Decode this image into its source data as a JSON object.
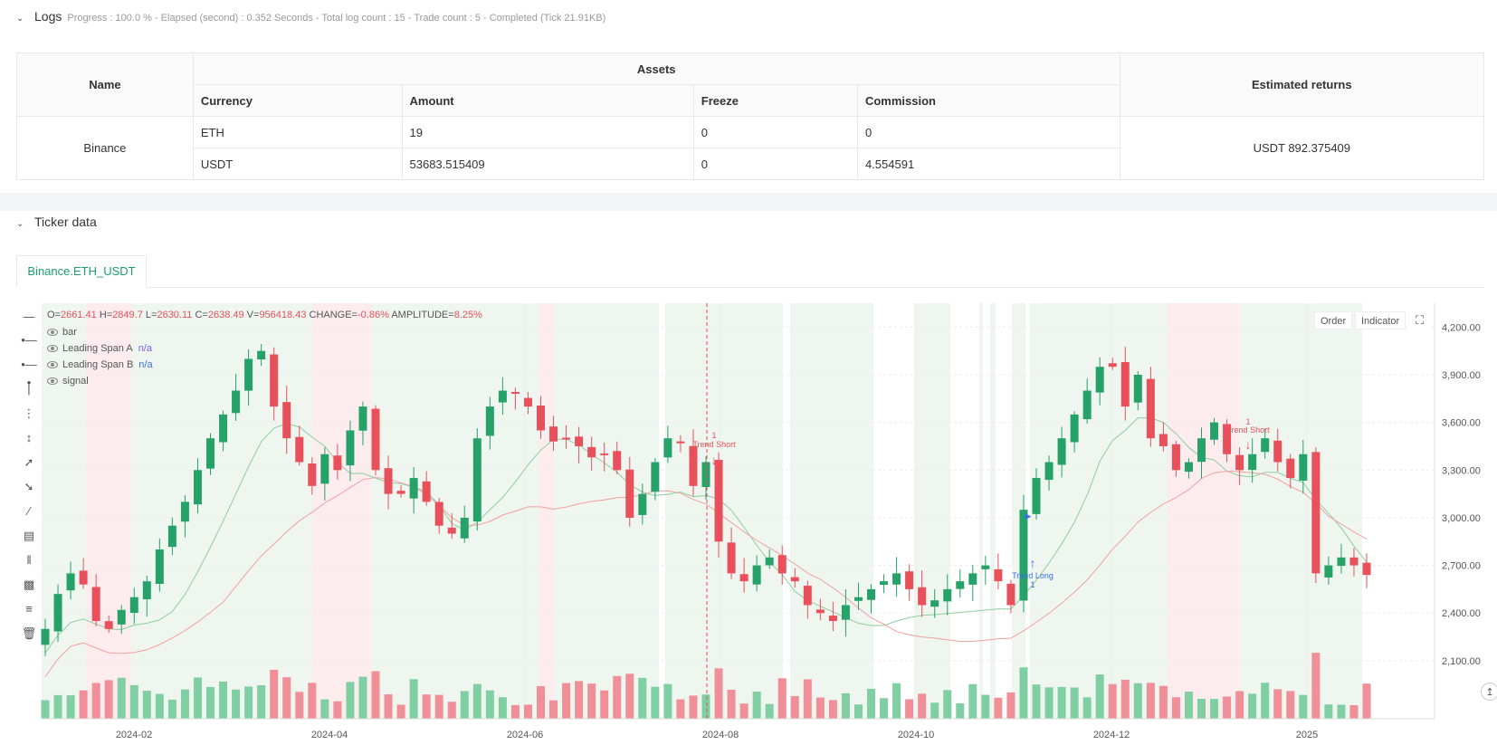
{
  "logs": {
    "title": "Logs",
    "status": "Progress : 100.0 % - Elapsed (second) : 0.352 Seconds - Total log count : 15 - Trade count : 5 - Completed (Tick 21.91KB)"
  },
  "assets_table": {
    "col_name": "Name",
    "col_assets": "Assets",
    "col_returns": "Estimated returns",
    "sub_currency": "Currency",
    "sub_amount": "Amount",
    "sub_freeze": "Freeze",
    "sub_commission": "Commission",
    "exchange": "Binance",
    "rows": [
      {
        "currency": "ETH",
        "amount": "19",
        "freeze": "0",
        "commission": "0"
      },
      {
        "currency": "USDT",
        "amount": "53683.515409",
        "freeze": "0",
        "commission": "4.554591"
      }
    ],
    "returns": "USDT 892.375409"
  },
  "ticker": {
    "title": "Ticker data",
    "tab": "Binance.ETH_USDT",
    "ohlc": {
      "o_label": "O=",
      "o": "2661.41",
      "h_label": "H=",
      "h": "2849.7",
      "l_label": "L=",
      "l": "2630.11",
      "c_label": "C=",
      "c": "2638.49",
      "v_label": "V=",
      "v": "956418.43",
      "change_label": "CHANGE=",
      "change": "-0.86%",
      "amp_label": "AMPLITUDE=",
      "amp": "8.25%"
    },
    "legend": [
      {
        "name": "bar",
        "value": ""
      },
      {
        "name": "Leading Span A",
        "value": "n/a"
      },
      {
        "name": "Leading Span B",
        "value": "n/a"
      },
      {
        "name": "signal",
        "value": ""
      }
    ],
    "buttons": {
      "order": "Order",
      "indicator": "Indicator"
    },
    "annotations": [
      {
        "label": "Trend Short",
        "count": "1"
      },
      {
        "label": "Trend Long",
        "count": "1"
      },
      {
        "label": "Trend Short",
        "count": "1"
      }
    ]
  },
  "colors": {
    "up": "#26a269",
    "down": "#e8505b",
    "accent": "#1a9e6a",
    "span_a": "#8fce9e",
    "span_b": "#f2a0a0",
    "long_marker": "#3b6ee8"
  },
  "chart_data": {
    "type": "candlestick",
    "y_ticks": [
      "4,200.00",
      "3,900.00",
      "3,600.00",
      "3,300.00",
      "3,000.00",
      "2,700.00",
      "2,400.00",
      "2,100.00"
    ],
    "ylim": [
      1900,
      4350
    ],
    "x_ticks": [
      "2024-02",
      "2024-04",
      "2024-06",
      "2024-08",
      "2024-10",
      "2024-12",
      "2025"
    ],
    "close_path": [
      2300,
      2520,
      2650,
      2580,
      2350,
      2300,
      2420,
      2500,
      2600,
      2800,
      2950,
      3100,
      3300,
      3500,
      3650,
      3800,
      4000,
      4050,
      3700,
      3500,
      3350,
      3200,
      3400,
      3300,
      3550,
      3700,
      3300,
      3150,
      3150,
      3250,
      3100,
      2950,
      2900,
      3000,
      3500,
      3700,
      3800,
      3780,
      3700,
      3550,
      3480,
      3500,
      3450,
      3380,
      3400,
      3300,
      3000,
      3150,
      3350,
      3500,
      3480,
      3200,
      3350,
      2850,
      2650,
      2600,
      2700,
      2750,
      2650,
      2600,
      2450,
      2400,
      2350,
      2450,
      2500,
      2550,
      2600,
      2650,
      2550,
      2450,
      2480,
      2550,
      2600,
      2650,
      2700,
      2600,
      2450,
      3050,
      3250,
      3350,
      3500,
      3650,
      3800,
      3950,
      3950,
      3700,
      3900,
      3500,
      3450,
      3300,
      3350,
      3500,
      3600,
      3400,
      3300,
      3400,
      3500,
      3350,
      3250,
      3400,
      2650,
      2700,
      2750,
      2700,
      2640
    ],
    "trades": [
      {
        "type": "short",
        "date": "2024-08"
      },
      {
        "type": "long",
        "date": "2024-11"
      },
      {
        "type": "short",
        "date": "2025-01"
      }
    ]
  }
}
